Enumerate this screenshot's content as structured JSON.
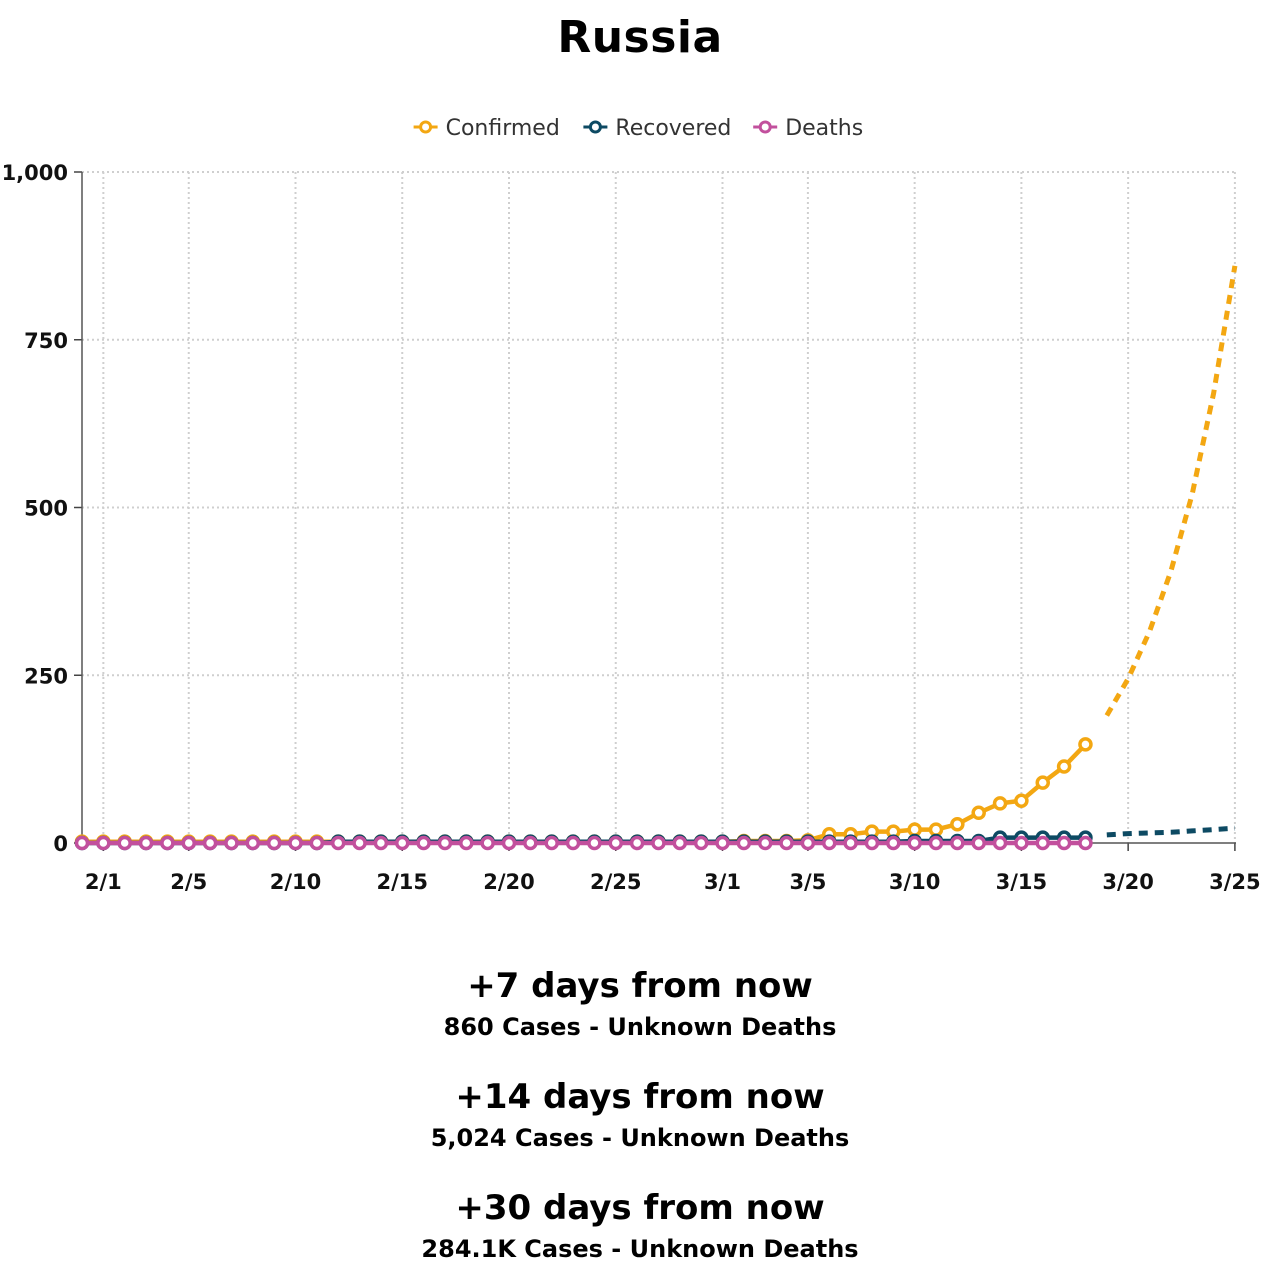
{
  "title": "Russia",
  "legend": [
    {
      "label": "Confirmed",
      "color": "#f3a712"
    },
    {
      "label": "Recovered",
      "color": "#0d4a63"
    },
    {
      "label": "Deaths",
      "color": "#c2509d"
    }
  ],
  "chart_data": {
    "type": "line",
    "title": "Russia",
    "x_start_date": "1/31",
    "x_ticks": [
      "2/1",
      "2/5",
      "2/10",
      "2/15",
      "2/20",
      "2/25",
      "3/1",
      "3/5",
      "3/10",
      "3/15",
      "3/20",
      "3/25"
    ],
    "y_ticks": [
      "0",
      "250",
      "500",
      "750",
      "1,000"
    ],
    "ylim": [
      0,
      1000
    ],
    "grid": true,
    "legend_position": "top-center",
    "series": [
      {
        "name": "Confirmed",
        "color": "#f3a712",
        "style": "solid",
        "dates": [
          "1/31",
          "2/1",
          "2/2",
          "2/3",
          "2/4",
          "2/5",
          "2/6",
          "2/7",
          "2/8",
          "2/9",
          "2/10",
          "2/11",
          "2/12",
          "2/13",
          "2/14",
          "2/15",
          "2/16",
          "2/17",
          "2/18",
          "2/19",
          "2/20",
          "2/21",
          "2/22",
          "2/23",
          "2/24",
          "2/25",
          "2/26",
          "2/27",
          "2/28",
          "2/29",
          "3/1",
          "3/2",
          "3/3",
          "3/4",
          "3/5",
          "3/6",
          "3/7",
          "3/8",
          "3/9",
          "3/10",
          "3/11",
          "3/12",
          "3/13",
          "3/14",
          "3/15",
          "3/16",
          "3/17",
          "3/18"
        ],
        "values": [
          2,
          2,
          2,
          2,
          2,
          2,
          2,
          2,
          2,
          2,
          2,
          2,
          2,
          2,
          2,
          2,
          2,
          2,
          2,
          2,
          2,
          2,
          2,
          2,
          2,
          2,
          2,
          2,
          2,
          2,
          2,
          3,
          3,
          3,
          4,
          13,
          13,
          17,
          17,
          20,
          20,
          28,
          45,
          59,
          63,
          90,
          114,
          147
        ]
      },
      {
        "name": "Recovered",
        "color": "#0d4a63",
        "style": "solid",
        "dates": [
          "1/31",
          "2/1",
          "2/2",
          "2/3",
          "2/4",
          "2/5",
          "2/6",
          "2/7",
          "2/8",
          "2/9",
          "2/10",
          "2/11",
          "2/12",
          "2/13",
          "2/14",
          "2/15",
          "2/16",
          "2/17",
          "2/18",
          "2/19",
          "2/20",
          "2/21",
          "2/22",
          "2/23",
          "2/24",
          "2/25",
          "2/26",
          "2/27",
          "2/28",
          "2/29",
          "3/1",
          "3/2",
          "3/3",
          "3/4",
          "3/5",
          "3/6",
          "3/7",
          "3/8",
          "3/9",
          "3/10",
          "3/11",
          "3/12",
          "3/13",
          "3/14",
          "3/15",
          "3/16",
          "3/17",
          "3/18"
        ],
        "values": [
          0,
          0,
          0,
          0,
          0,
          0,
          0,
          0,
          0,
          0,
          0,
          0,
          2,
          2,
          2,
          2,
          2,
          2,
          2,
          2,
          2,
          2,
          2,
          2,
          2,
          2,
          2,
          2,
          2,
          2,
          2,
          2,
          2,
          2,
          2,
          2,
          2,
          2,
          2,
          3,
          3,
          3,
          3,
          8,
          8,
          8,
          8,
          8
        ]
      },
      {
        "name": "Deaths",
        "color": "#c2509d",
        "style": "solid",
        "dates": [
          "1/31",
          "2/1",
          "2/2",
          "2/3",
          "2/4",
          "2/5",
          "2/6",
          "2/7",
          "2/8",
          "2/9",
          "2/10",
          "2/11",
          "2/12",
          "2/13",
          "2/14",
          "2/15",
          "2/16",
          "2/17",
          "2/18",
          "2/19",
          "2/20",
          "2/21",
          "2/22",
          "2/23",
          "2/24",
          "2/25",
          "2/26",
          "2/27",
          "2/28",
          "2/29",
          "3/1",
          "3/2",
          "3/3",
          "3/4",
          "3/5",
          "3/6",
          "3/7",
          "3/8",
          "3/9",
          "3/10",
          "3/11",
          "3/12",
          "3/13",
          "3/14",
          "3/15",
          "3/16",
          "3/17",
          "3/18"
        ],
        "values": [
          0,
          0,
          0,
          0,
          0,
          0,
          0,
          0,
          0,
          0,
          0,
          0,
          0,
          0,
          0,
          0,
          0,
          0,
          0,
          0,
          0,
          0,
          0,
          0,
          0,
          0,
          0,
          0,
          0,
          0,
          0,
          0,
          0,
          0,
          0,
          0,
          0,
          0,
          0,
          0,
          0,
          0,
          0,
          0,
          0,
          0,
          0,
          0
        ]
      },
      {
        "name": "Confirmed",
        "color": "#f3a712",
        "style": "dashed",
        "dates": [
          "3/19",
          "3/20",
          "3/21",
          "3/22",
          "3/23",
          "3/24",
          "3/25"
        ],
        "values": [
          190,
          245,
          315,
          405,
          520,
          670,
          860
        ]
      },
      {
        "name": "Recovered",
        "color": "#0d4a63",
        "style": "dashed",
        "dates": [
          "3/19",
          "3/20",
          "3/21",
          "3/22",
          "3/23",
          "3/24",
          "3/25"
        ],
        "values": [
          12,
          14,
          15,
          16,
          18,
          20,
          22
        ]
      }
    ]
  },
  "forecasts": [
    {
      "title": "+7 days from now",
      "detail": "860 Cases - Unknown Deaths"
    },
    {
      "title": "+14 days from now",
      "detail": "5,024 Cases - Unknown Deaths"
    },
    {
      "title": "+30 days from now",
      "detail": "284.1K Cases - Unknown Deaths"
    }
  ]
}
